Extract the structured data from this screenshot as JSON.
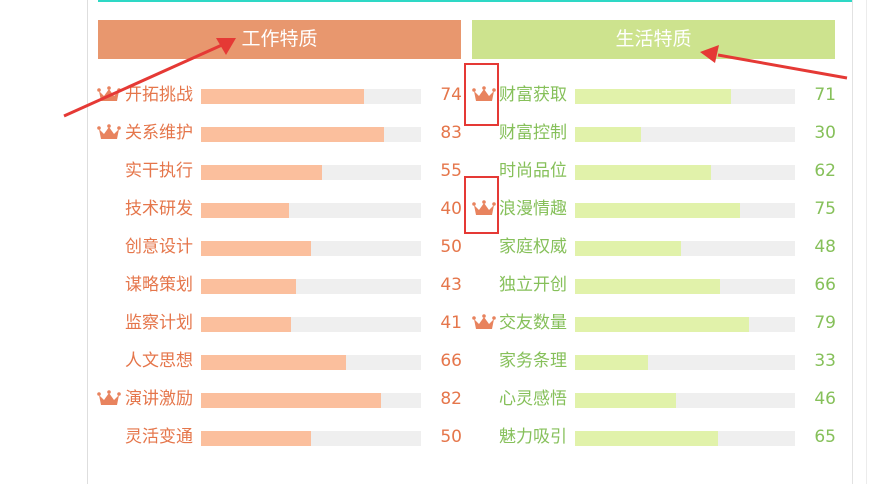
{
  "colors": {
    "work_header": "#e8976e",
    "life_header": "#cde38e",
    "work_bar": "#fbbf9d",
    "life_bar": "#e1f2aa",
    "work_text": "#e5764b",
    "life_text": "#86c05a",
    "track": "#efefef",
    "crown": "#e8835e",
    "annotation": "#e53935",
    "top_stripe": "#2ed8c5"
  },
  "work": {
    "title": "工作特质",
    "items": [
      {
        "label": "开拓挑战",
        "value": 74,
        "crown": true
      },
      {
        "label": "关系维护",
        "value": 83,
        "crown": true
      },
      {
        "label": "实干执行",
        "value": 55,
        "crown": false
      },
      {
        "label": "技术研发",
        "value": 40,
        "crown": false
      },
      {
        "label": "创意设计",
        "value": 50,
        "crown": false
      },
      {
        "label": "谋略策划",
        "value": 43,
        "crown": false
      },
      {
        "label": "监察计划",
        "value": 41,
        "crown": false
      },
      {
        "label": "人文思想",
        "value": 66,
        "crown": false
      },
      {
        "label": "演讲激励",
        "value": 82,
        "crown": true
      },
      {
        "label": "灵活变通",
        "value": 50,
        "crown": false
      }
    ]
  },
  "life": {
    "title": "生活特质",
    "items": [
      {
        "label": "财富获取",
        "value": 71,
        "crown": true
      },
      {
        "label": "财富控制",
        "value": 30,
        "crown": false
      },
      {
        "label": "时尚品位",
        "value": 62,
        "crown": false
      },
      {
        "label": "浪漫情趣",
        "value": 75,
        "crown": true
      },
      {
        "label": "家庭权威",
        "value": 48,
        "crown": false
      },
      {
        "label": "独立开创",
        "value": 66,
        "crown": false
      },
      {
        "label": "交友数量",
        "value": 79,
        "crown": true
      },
      {
        "label": "家务条理",
        "value": 33,
        "crown": false
      },
      {
        "label": "心灵感悟",
        "value": 46,
        "crown": false
      },
      {
        "label": "魅力吸引",
        "value": 65,
        "crown": false
      }
    ]
  },
  "icons": {
    "crown": "crown-icon",
    "arrow": "annotation-arrow"
  }
}
